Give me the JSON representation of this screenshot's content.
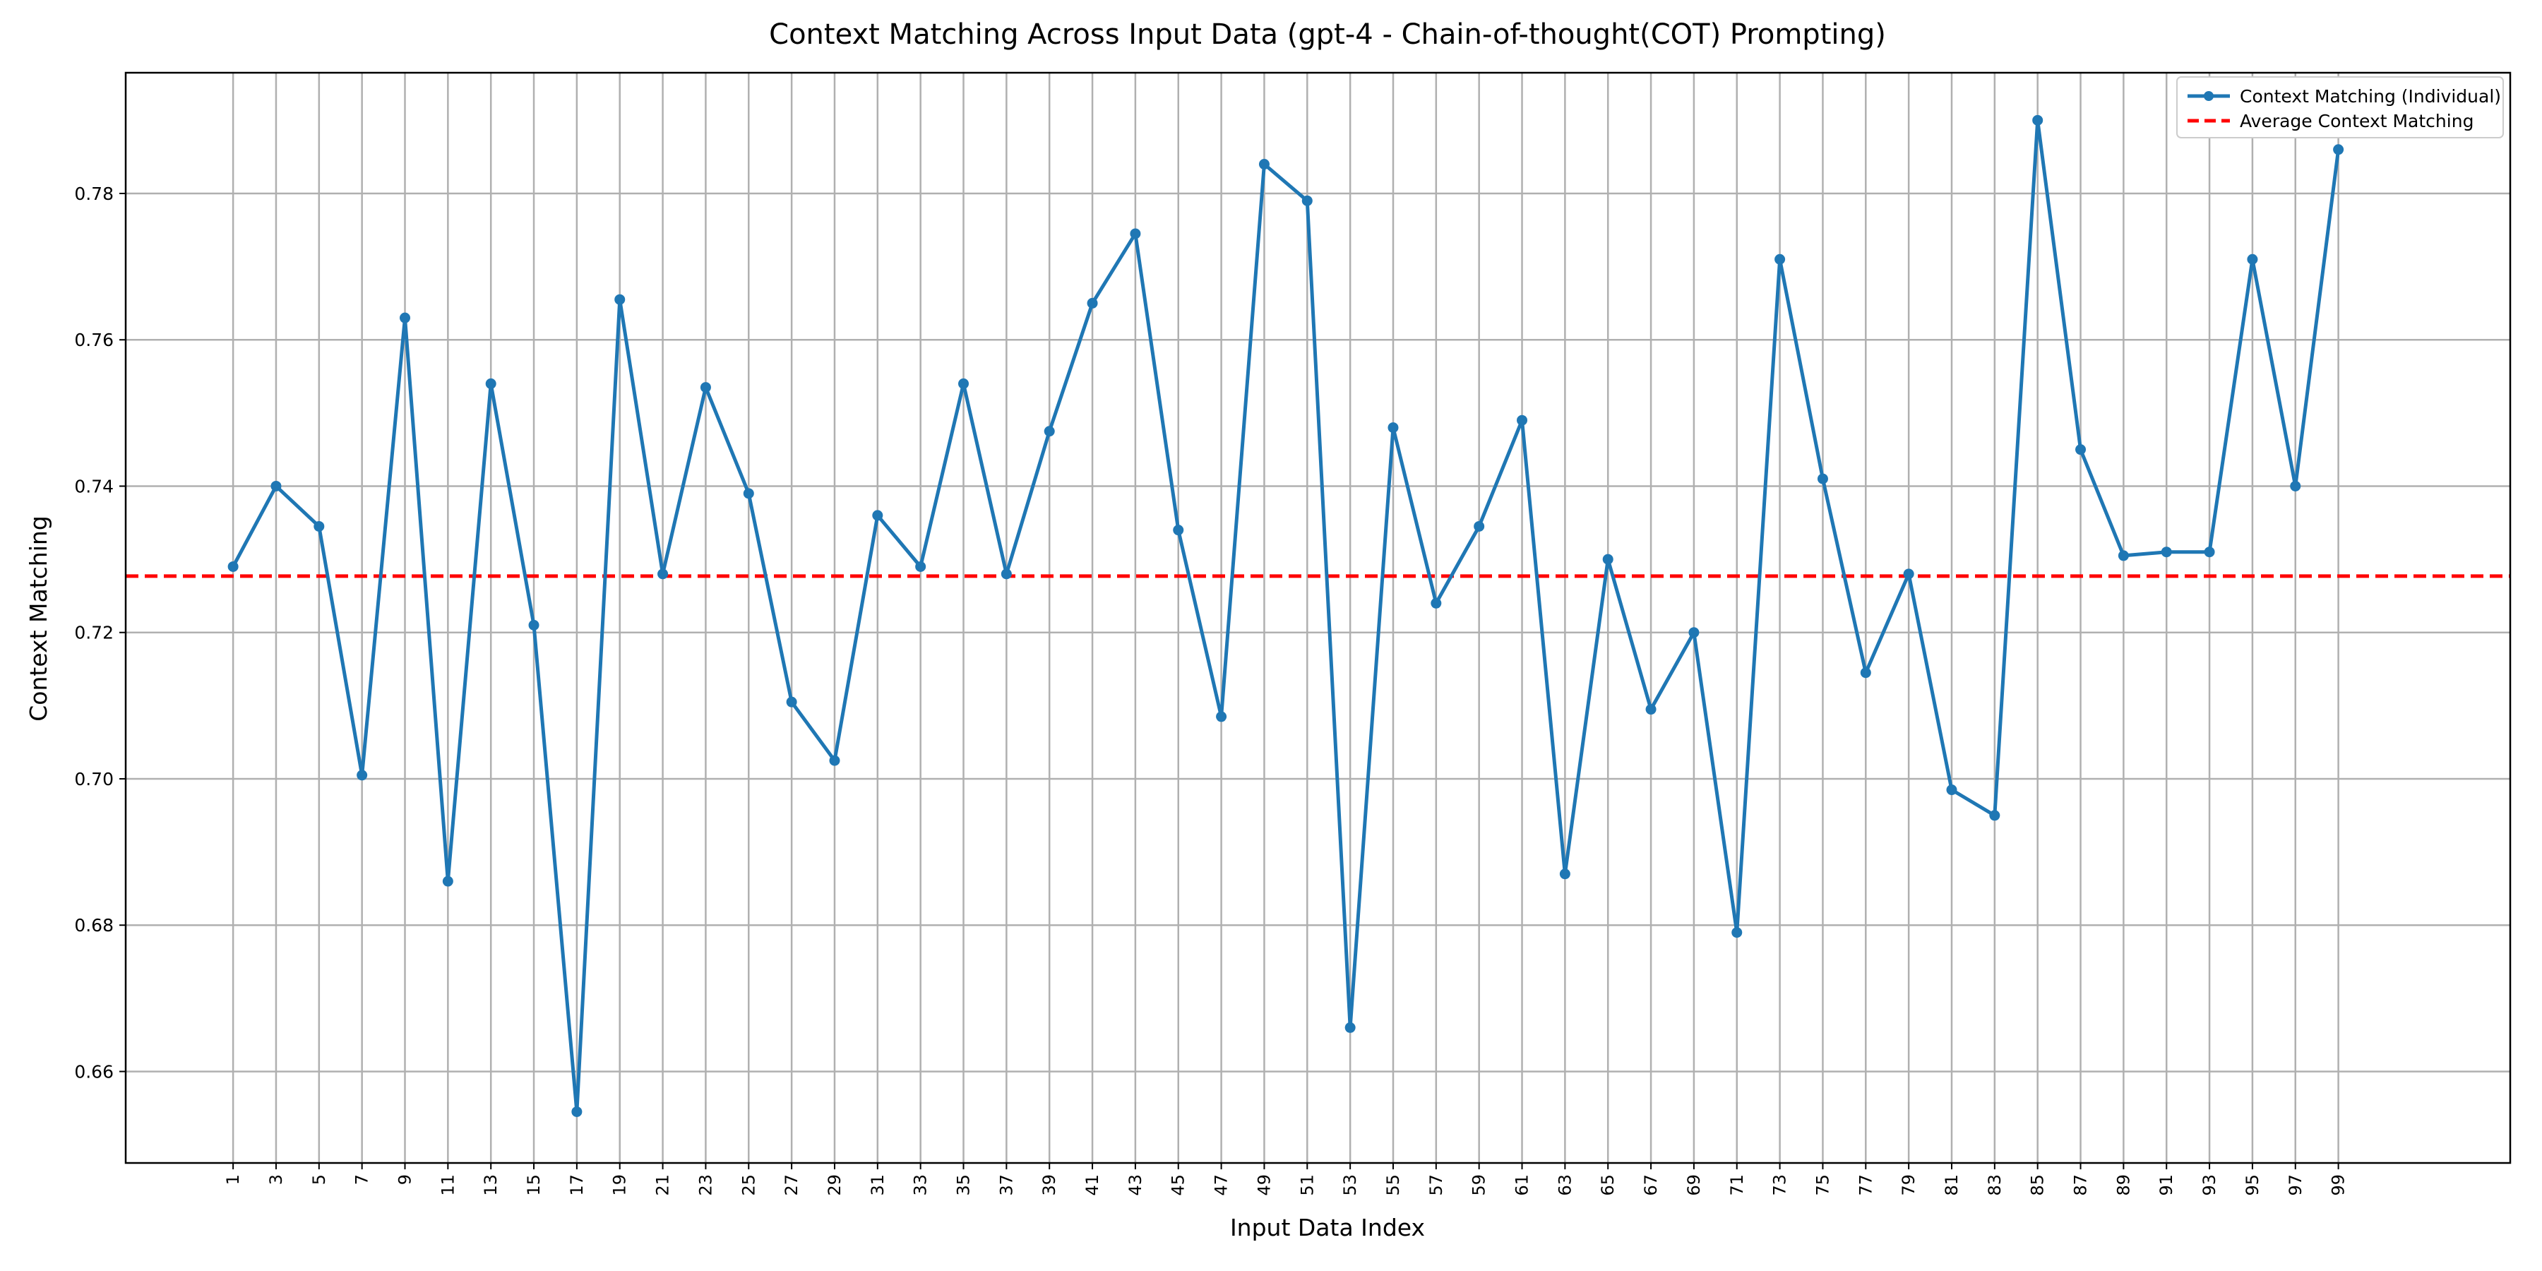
{
  "chart_data": {
    "type": "line",
    "title": "Context Matching Across Input Data (gpt-4 - Chain-of-thought(COT) Prompting)",
    "xlabel": "Input Data Index",
    "ylabel": "Context Matching",
    "x": [
      1,
      3,
      5,
      7,
      9,
      11,
      13,
      15,
      17,
      19,
      21,
      23,
      25,
      27,
      29,
      31,
      33,
      35,
      37,
      39,
      41,
      43,
      45,
      47,
      49,
      51,
      53,
      55,
      57,
      59,
      61,
      63,
      65,
      67,
      69,
      71,
      73,
      75,
      77,
      79,
      81,
      83,
      85,
      87,
      89,
      91,
      93,
      95,
      97,
      99
    ],
    "x_tick_labels": [
      "1",
      "3",
      "5",
      "7",
      "9",
      "11",
      "13",
      "15",
      "17",
      "19",
      "21",
      "23",
      "25",
      "27",
      "29",
      "31",
      "33",
      "35",
      "37",
      "39",
      "41",
      "43",
      "45",
      "47",
      "49",
      "51",
      "53",
      "55",
      "57",
      "59",
      "61",
      "63",
      "65",
      "67",
      "69",
      "71",
      "73",
      "75",
      "77",
      "79",
      "81",
      "83",
      "85",
      "87",
      "89",
      "91",
      "93",
      "95",
      "97",
      "99"
    ],
    "xlim": [
      -4,
      107
    ],
    "ylim": [
      0.6475,
      0.7965
    ],
    "y_ticks": [
      0.66,
      0.68,
      0.7,
      0.72,
      0.74,
      0.76,
      0.78
    ],
    "y_tick_labels": [
      "0.66",
      "0.68",
      "0.70",
      "0.72",
      "0.74",
      "0.76",
      "0.78"
    ],
    "grid": true,
    "legend_position": "top-right",
    "series": [
      {
        "name": "Context Matching (Individual)",
        "style": "solid line with circle markers",
        "color": "#1f77b4",
        "values": [
          0.729,
          0.74,
          0.7345,
          0.7005,
          0.763,
          0.686,
          0.754,
          0.721,
          0.6545,
          0.7655,
          0.728,
          0.7535,
          0.739,
          0.7105,
          0.7025,
          0.736,
          0.729,
          0.754,
          0.728,
          0.7475,
          0.765,
          0.7745,
          0.734,
          0.7085,
          0.784,
          0.779,
          0.666,
          0.748,
          0.724,
          0.7345,
          0.749,
          0.687,
          0.73,
          0.7095,
          0.72,
          0.679,
          0.771,
          0.741,
          0.7145,
          0.728,
          0.6985,
          0.695,
          0.79,
          0.745,
          0.7305,
          0.731,
          0.731,
          0.771,
          0.74,
          0.786
        ]
      },
      {
        "name": "Average Context Matching",
        "style": "dashed line",
        "color": "#ff0000",
        "value": 0.7277
      }
    ]
  }
}
